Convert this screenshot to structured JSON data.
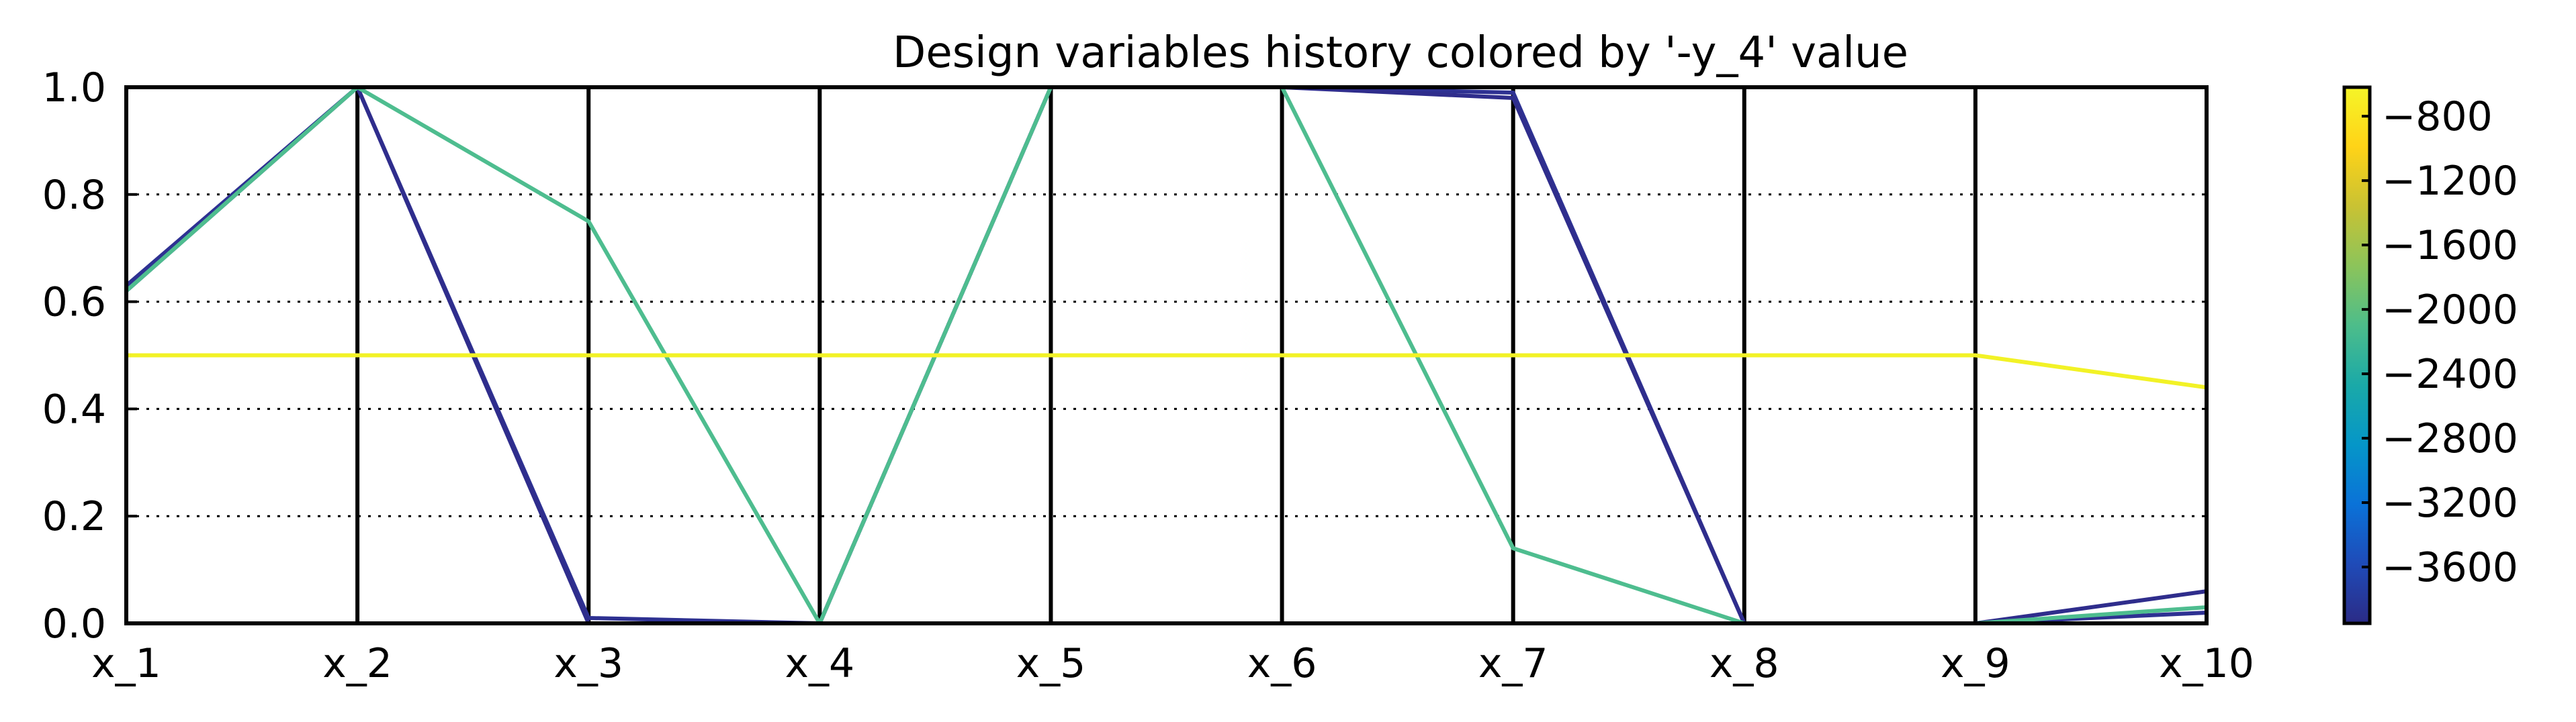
{
  "chart_data": {
    "type": "parallel-coordinates",
    "title": "Design variables history colored by '-y_4'  value",
    "axes": [
      "x_1",
      "x_2",
      "x_3",
      "x_4",
      "x_5",
      "x_6",
      "x_7",
      "x_8",
      "x_9",
      "x_10"
    ],
    "ylim": [
      0.0,
      1.0
    ],
    "yticks": [
      "0.0",
      "0.2",
      "0.4",
      "0.6",
      "0.8",
      "1.0"
    ],
    "grid": "horizontal-dotted",
    "colorbar": {
      "variable": "-y_4",
      "range": [
        -3950,
        -620
      ],
      "ticks": [
        "-800",
        "-1200",
        "-1600",
        "-2000",
        "-2400",
        "-2800",
        "-3200",
        "-3600"
      ],
      "tick_values": [
        -800,
        -1200,
        -1600,
        -2000,
        -2400,
        -2800,
        -3200,
        -3600
      ],
      "colormap_stops": [
        "#2b2b86",
        "#1f4bb8",
        "#0a72d8",
        "#0596c8",
        "#1aa9a8",
        "#4dbd8a",
        "#8cc45a",
        "#c9c233",
        "#ffd317",
        "#f5f528"
      ]
    },
    "series": [
      {
        "value": -3800,
        "color": "#2e3192",
        "values": [
          0.63,
          1.0,
          0.01,
          0.0,
          1.0,
          1.0,
          0.99,
          0.0,
          0.0,
          0.02
        ]
      },
      {
        "value": -3750,
        "color": "#2f2d8c",
        "values": [
          0.62,
          1.0,
          0.0,
          0.0,
          1.0,
          1.0,
          0.98,
          0.0,
          0.0,
          0.06
        ]
      },
      {
        "value": -2200,
        "color": "#4ebd8f",
        "values": [
          0.62,
          1.0,
          0.75,
          0.0,
          1.0,
          1.0,
          0.14,
          0.0,
          0.0,
          0.03
        ]
      },
      {
        "value": -700,
        "color": "#f2f226",
        "values": [
          0.5,
          0.5,
          0.5,
          0.5,
          0.5,
          0.5,
          0.5,
          0.5,
          0.5,
          0.44
        ]
      }
    ]
  }
}
